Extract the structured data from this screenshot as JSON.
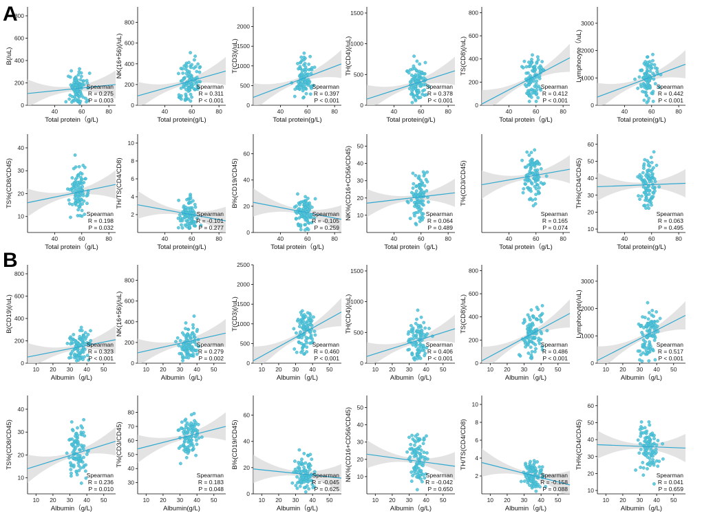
{
  "panel_labels": [
    "A",
    "B"
  ],
  "colors": {
    "point": "#4cc3d9",
    "point_stroke": "#3aa8c0",
    "line": "#2ea8cf",
    "band": "#d9d9d9",
    "axis": "#000000"
  },
  "chart_data": [
    {
      "type": "scatter",
      "xlabel": "Total protein（g/L)",
      "ylabel": "B(/uL)",
      "xlim": [
        20,
        85
      ],
      "ylim": [
        0,
        880
      ],
      "xticks": [
        40,
        60,
        80
      ],
      "yticks": [
        0,
        200,
        400,
        600,
        800
      ],
      "fit": {
        "y0": 105,
        "y1": 185
      },
      "stats": [
        "Spearman",
        "R = 0.275",
        "P = 0.003"
      ],
      "seed": 11,
      "scale": 0.4
    },
    {
      "type": "scatter",
      "xlabel": "Total protein(g/L)",
      "ylabel": "NK(16+56)(/uL)",
      "xlim": [
        20,
        85
      ],
      "ylim": [
        0,
        950
      ],
      "xticks": [
        40,
        60,
        80
      ],
      "yticks": [
        0,
        200,
        400,
        600,
        800
      ],
      "fit": {
        "y0": 90,
        "y1": 330
      },
      "stats": [
        "Spearman",
        "R = 0.311",
        "P < 0.001"
      ],
      "seed": 12,
      "scale": 0.5
    },
    {
      "type": "scatter",
      "xlabel": "Total protein(g/L)",
      "ylabel": "T(CD3)(/uL)",
      "xlim": [
        20,
        85
      ],
      "ylim": [
        0,
        2500
      ],
      "xticks": [
        40,
        60,
        80
      ],
      "yticks": [
        0,
        500,
        1000,
        1500,
        2000
      ],
      "fit": {
        "y0": 200,
        "y1": 1050
      },
      "stats": [
        "Spearman",
        "R = 0.397",
        "P < 0.001"
      ],
      "seed": 13,
      "scale": 0.5
    },
    {
      "type": "scatter",
      "xlabel": "Total protein(g/L)",
      "ylabel": "TH(CD4)(/uL)",
      "xlim": [
        20,
        85
      ],
      "ylim": [
        0,
        1600
      ],
      "xticks": [
        40,
        60,
        80
      ],
      "yticks": [
        0,
        500,
        1000,
        1500
      ],
      "fit": {
        "y0": 100,
        "y1": 560
      },
      "stats": [
        "Spearman",
        "R = 0.378",
        "P < 0.001"
      ],
      "seed": 14,
      "scale": 0.5
    },
    {
      "type": "scatter",
      "xlabel": "Total protein（g/L)",
      "ylabel": "TS(CD8)(/uL)",
      "xlim": [
        20,
        85
      ],
      "ylim": [
        0,
        850
      ],
      "xticks": [
        40,
        60,
        80
      ],
      "yticks": [
        0,
        200,
        400,
        600,
        800
      ],
      "fit": {
        "y0": 10,
        "y1": 410
      },
      "stats": [
        "Spearman",
        "R = 0.412",
        "P < 0.001"
      ],
      "seed": 15,
      "scale": 0.55
    },
    {
      "type": "scatter",
      "xlabel": "Total protein(g/L)",
      "ylabel": "Lymphocyte（/uL)",
      "xlim": [
        20,
        85
      ],
      "ylim": [
        0,
        3600
      ],
      "xticks": [
        40,
        60,
        80
      ],
      "yticks": [
        0,
        1000,
        2000,
        3000
      ],
      "fit": {
        "y0": 300,
        "y1": 1500
      },
      "stats": [
        "Spearman",
        "R = 0.442",
        "P < 0.001"
      ],
      "seed": 16,
      "scale": 0.5
    },
    {
      "type": "scatter",
      "xlabel": "Total protein（g/L)",
      "ylabel": "TS%(CD8/CD45)",
      "xlim": [
        20,
        85
      ],
      "ylim": [
        3,
        46
      ],
      "xticks": [
        40,
        60,
        80
      ],
      "yticks": [
        10,
        20,
        30,
        40
      ],
      "fit": {
        "y0": 16,
        "y1": 24
      },
      "stats": [
        "Spearman",
        "R = 0.198",
        "P = 0.032"
      ],
      "seed": 21,
      "scale": 0.6
    },
    {
      "type": "scatter",
      "xlabel": "Total protein(g/L)",
      "ylabel": "TH/TS(CD4/CD8)",
      "xlim": [
        20,
        85
      ],
      "ylim": [
        0,
        11
      ],
      "xticks": [
        40,
        60,
        80
      ],
      "yticks": [
        2,
        4,
        6,
        8,
        10
      ],
      "fit": {
        "y0": 3.1,
        "y1": 1.3
      },
      "stats": [
        "Spearman",
        "R = -0.101",
        "P = 0.277"
      ],
      "seed": 22,
      "scale": 0.35
    },
    {
      "type": "scatter",
      "xlabel": "Total protein（g/L)",
      "ylabel": "B%(CD19/CD45)",
      "xlim": [
        20,
        85
      ],
      "ylim": [
        0,
        75
      ],
      "xticks": [
        40,
        60,
        80
      ],
      "yticks": [
        0,
        20,
        40,
        60
      ],
      "fit": {
        "y0": 23,
        "y1": 10
      },
      "stats": [
        "Spearman",
        "R = -0.105",
        "P = 0.259"
      ],
      "seed": 23,
      "scale": 0.45
    },
    {
      "type": "scatter",
      "xlabel": "Total protein（g/L)",
      "ylabel": "NK%(CD16+CD56/CD45)",
      "xlim": [
        20,
        85
      ],
      "ylim": [
        0,
        57
      ],
      "xticks": [
        40,
        60,
        80
      ],
      "yticks": [
        10,
        20,
        30,
        40,
        50
      ],
      "fit": {
        "y0": 17,
        "y1": 23
      },
      "stats": [
        "Spearman",
        "R = 0.064",
        "P = 0.489"
      ],
      "seed": 24,
      "scale": 0.6
    },
    {
      "type": "scatter",
      "xlabel": "Total protein（g/L)",
      "ylabel": "T%(CD3/CD45)",
      "xlim": [
        20,
        85
      ],
      "ylim": [
        22,
        92
      ],
      "xticks": [
        40,
        60,
        80
      ],
      "yticks": [],
      "fit": {
        "y0": 56,
        "y1": 67
      },
      "stats": [
        "Spearman",
        "R = 0.165",
        "P = 0.074"
      ],
      "seed": 25,
      "scale": 0.55
    },
    {
      "type": "scatter",
      "xlabel": "Total protein(g/L)",
      "ylabel": "TH%(CD4/CD45)",
      "xlim": [
        20,
        85
      ],
      "ylim": [
        8,
        66
      ],
      "xticks": [
        40,
        60,
        80
      ],
      "yticks": [
        10,
        20,
        30,
        40,
        50,
        60
      ],
      "fit": {
        "y0": 35,
        "y1": 37
      },
      "stats": [
        "Spearman",
        "R = 0.063",
        "P = 0.495"
      ],
      "seed": 26,
      "scale": 0.6
    },
    {
      "type": "scatter",
      "xlabel": "Albumin（g/L)",
      "ylabel": "B(CD19)(/uL)",
      "xlim": [
        5,
        57
      ],
      "ylim": [
        0,
        880
      ],
      "xticks": [
        10,
        20,
        30,
        40,
        50
      ],
      "yticks": [
        0,
        200,
        400,
        600,
        800
      ],
      "fit": {
        "y0": 55,
        "y1": 210
      },
      "stats": [
        "Spearman",
        "R = 0.323",
        "P < 0.001"
      ],
      "seed": 31,
      "scale": 0.4
    },
    {
      "type": "scatter",
      "xlabel": "Albumin（g/L)",
      "ylabel": "NK(16+56)(/uL)",
      "xlim": [
        5,
        57
      ],
      "ylim": [
        0,
        950
      ],
      "xticks": [
        10,
        20,
        30,
        40,
        50
      ],
      "yticks": [
        0,
        200,
        400,
        600,
        800
      ],
      "fit": {
        "y0": 100,
        "y1": 290
      },
      "stats": [
        "Spearman",
        "R = 0.279",
        "P = 0.002"
      ],
      "seed": 32,
      "scale": 0.5
    },
    {
      "type": "scatter",
      "xlabel": "Albumin（g/L)",
      "ylabel": "T(CD3)(/uL)",
      "xlim": [
        5,
        57
      ],
      "ylim": [
        0,
        2500
      ],
      "xticks": [
        10,
        20,
        30,
        40,
        50
      ],
      "yticks": [
        0,
        500,
        1000,
        1500,
        2000,
        2500
      ],
      "fit": {
        "y0": 60,
        "y1": 1300
      },
      "stats": [
        "Spearman",
        "R = 0.460",
        "P < 0.001"
      ],
      "seed": 33,
      "scale": 0.5
    },
    {
      "type": "scatter",
      "xlabel": "Albumin（g/L)",
      "ylabel": "TH(CD4)(/uL)",
      "xlim": [
        5,
        57
      ],
      "ylim": [
        0,
        1600
      ],
      "xticks": [
        10,
        20,
        30,
        40,
        50
      ],
      "yticks": [
        0,
        500,
        1000,
        1500
      ],
      "fit": {
        "y0": 110,
        "y1": 560
      },
      "stats": [
        "Spearman",
        "R = 0.406",
        "P < 0.001"
      ],
      "seed": 34,
      "scale": 0.5
    },
    {
      "type": "scatter",
      "xlabel": "Albumin（g/L)",
      "ylabel": "TS(CD8)(/uL)",
      "xlim": [
        5,
        57
      ],
      "ylim": [
        0,
        850
      ],
      "xticks": [
        10,
        20,
        30,
        40,
        50
      ],
      "yticks": [
        0,
        200,
        400,
        600,
        800
      ],
      "fit": {
        "y0": 20,
        "y1": 430
      },
      "stats": [
        "Spearman",
        "R = 0.486",
        "P < 0.001"
      ],
      "seed": 35,
      "scale": 0.55
    },
    {
      "type": "scatter",
      "xlabel": "Albumin（g/L)",
      "ylabel": "Lymphocyte(/uL)",
      "xlim": [
        5,
        57
      ],
      "ylim": [
        0,
        3600
      ],
      "xticks": [
        10,
        20,
        30,
        40,
        50
      ],
      "yticks": [
        0,
        1000,
        2000,
        3000
      ],
      "fit": {
        "y0": 100,
        "y1": 1750
      },
      "stats": [
        "Spearman",
        "R = 0.517",
        "P < 0.001"
      ],
      "seed": 36,
      "scale": 0.5
    },
    {
      "type": "scatter",
      "xlabel": "Albumin（g/L)",
      "ylabel": "TS%(CD8/CD45)",
      "xlim": [
        5,
        57
      ],
      "ylim": [
        3,
        46
      ],
      "xticks": [
        10,
        20,
        30,
        40,
        50
      ],
      "yticks": [
        10,
        20,
        30,
        40
      ],
      "fit": {
        "y0": 14,
        "y1": 26
      },
      "stats": [
        "Spearman",
        "R = 0.236",
        "P = 0.010"
      ],
      "seed": 41,
      "scale": 0.6
    },
    {
      "type": "scatter",
      "xlabel": "Albumin(g/L)",
      "ylabel": "T%(CD3/CD45)",
      "xlim": [
        5,
        57
      ],
      "ylim": [
        22,
        92
      ],
      "xticks": [
        10,
        20,
        30,
        40,
        50
      ],
      "yticks": [
        30,
        40,
        50,
        60,
        70,
        80
      ],
      "fit": {
        "y0": 54,
        "y1": 70
      },
      "stats": [
        "Spearman",
        "R = 0.183",
        "P = 0.048"
      ],
      "seed": 42,
      "scale": 0.55
    },
    {
      "type": "scatter",
      "xlabel": "Albumin（g/L)",
      "ylabel": "B%(CD19/CD45)",
      "xlim": [
        5,
        57
      ],
      "ylim": [
        0,
        75
      ],
      "xticks": [
        10,
        20,
        30,
        40,
        50
      ],
      "yticks": [
        0,
        20,
        40,
        60
      ],
      "fit": {
        "y0": 19,
        "y1": 12
      },
      "stats": [
        "Spearman",
        "R = -0.045",
        "P = 0.625"
      ],
      "seed": 43,
      "scale": 0.45
    },
    {
      "type": "scatter",
      "xlabel": "Albumin（g/L)",
      "ylabel": "NK%(CD16+CD56/CD45)",
      "xlim": [
        5,
        57
      ],
      "ylim": [
        0,
        57
      ],
      "xticks": [
        10,
        20,
        30,
        40,
        50
      ],
      "yticks": [
        10,
        20,
        30,
        40,
        50
      ],
      "fit": {
        "y0": 23,
        "y1": 16
      },
      "stats": [
        "Spearman",
        "R = -0.042",
        "P = 0.650"
      ],
      "seed": 44,
      "scale": 0.6
    },
    {
      "type": "scatter",
      "xlabel": "Albumin（g/L)",
      "ylabel": "TH/TS(CD4/CD8)",
      "xlim": [
        5,
        57
      ],
      "ylim": [
        0,
        11
      ],
      "xticks": [
        10,
        20,
        30,
        40,
        50
      ],
      "yticks": [
        2,
        4,
        6,
        8,
        10
      ],
      "fit": {
        "y0": 3.5,
        "y1": 1.0
      },
      "stats": [
        "Spearman",
        "R = -0.158",
        "P = 0.088"
      ],
      "seed": 45,
      "scale": 0.35
    },
    {
      "type": "scatter",
      "xlabel": "Albumin（g/L)",
      "ylabel": "TH%(CD4/CD45)",
      "xlim": [
        5,
        57
      ],
      "ylim": [
        8,
        66
      ],
      "xticks": [
        10,
        20,
        30,
        40,
        50
      ],
      "yticks": [
        10,
        20,
        30,
        40,
        50,
        60
      ],
      "fit": {
        "y0": 37,
        "y1": 35
      },
      "stats": [
        "Spearman",
        "R = 0.041",
        "P = 0.659"
      ],
      "seed": 46,
      "scale": 0.6
    }
  ]
}
